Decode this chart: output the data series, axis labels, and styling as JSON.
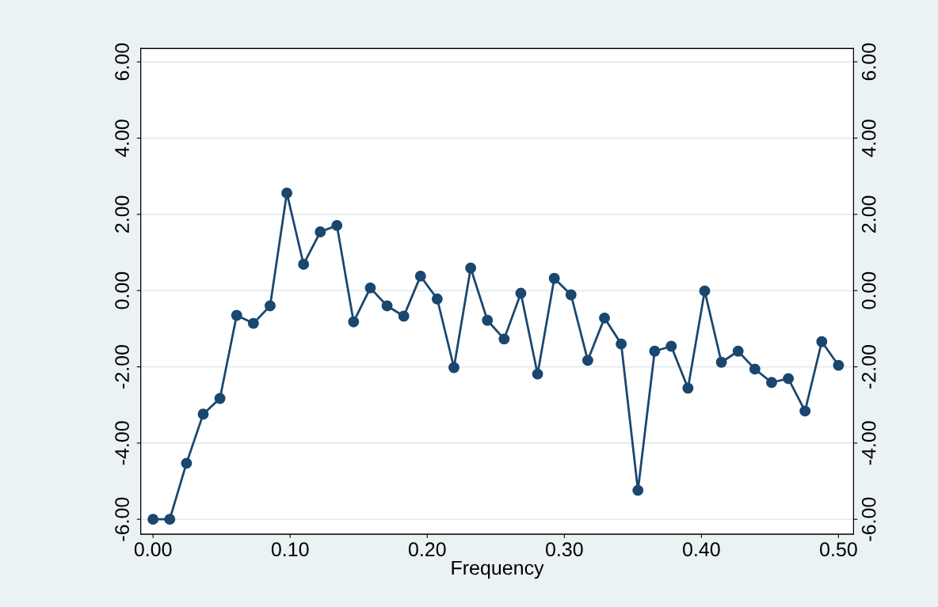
{
  "chart_data": {
    "type": "line",
    "xlabel": "Frequency",
    "x": [
      0.0,
      0.0122,
      0.0244,
      0.0366,
      0.0488,
      0.061,
      0.0732,
      0.0854,
      0.0976,
      0.1098,
      0.122,
      0.1341,
      0.1463,
      0.1585,
      0.1707,
      0.1829,
      0.1951,
      0.2073,
      0.2195,
      0.2317,
      0.2439,
      0.2561,
      0.2683,
      0.2805,
      0.2927,
      0.3049,
      0.3171,
      0.3293,
      0.3415,
      0.3537,
      0.3659,
      0.378,
      0.3902,
      0.4024,
      0.4146,
      0.4268,
      0.439,
      0.4512,
      0.4634,
      0.4756,
      0.4878,
      0.5
    ],
    "series": [
      {
        "color": "#1a476f",
        "values": [
          -6.0,
          -6.0,
          -4.53,
          -3.24,
          -2.83,
          -0.65,
          -0.86,
          -0.4,
          2.56,
          0.69,
          1.54,
          1.71,
          -0.82,
          0.07,
          -0.4,
          -0.67,
          0.38,
          -0.22,
          -2.02,
          0.59,
          -0.78,
          -1.27,
          -0.07,
          -2.19,
          0.32,
          -0.11,
          -1.83,
          -0.72,
          -1.4,
          -5.24,
          -1.59,
          -1.46,
          -2.56,
          -0.01,
          -1.88,
          -1.59,
          -2.06,
          -2.41,
          -2.31,
          -3.16,
          -1.34,
          -1.96
        ]
      }
    ],
    "xlim": [
      -0.009,
      0.511
    ],
    "ylim": [
      -6.39,
      6.35
    ],
    "y2lim": [
      -6.39,
      6.35
    ],
    "xticks": [
      {
        "value": 0,
        "label": "0.00"
      },
      {
        "value": 0.1,
        "label": "0.10"
      },
      {
        "value": 0.2,
        "label": "0.20"
      },
      {
        "value": 0.3,
        "label": "0.30"
      },
      {
        "value": 0.4,
        "label": "0.40"
      },
      {
        "value": 0.5,
        "label": "0.50"
      }
    ],
    "yticks": [
      {
        "value": -6,
        "label": "-6.00"
      },
      {
        "value": -4,
        "label": "-4.00"
      },
      {
        "value": -2,
        "label": "-2.00"
      },
      {
        "value": 0,
        "label": "0.00"
      },
      {
        "value": 2,
        "label": "2.00"
      },
      {
        "value": 4,
        "label": "4.00"
      },
      {
        "value": 6,
        "label": "6.00"
      }
    ],
    "y2ticks": [
      {
        "value": -6,
        "label": "-6.00"
      },
      {
        "value": -4,
        "label": "-4.00"
      },
      {
        "value": -2,
        "label": "-2.00"
      },
      {
        "value": 0,
        "label": "0.00"
      },
      {
        "value": 2,
        "label": "2.00"
      },
      {
        "value": 4,
        "label": "4.00"
      },
      {
        "value": 6,
        "label": "6.00"
      }
    ],
    "grid": "y",
    "marker": "circle",
    "line_style": "solid"
  }
}
